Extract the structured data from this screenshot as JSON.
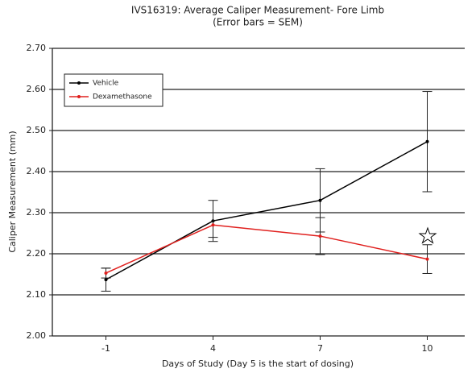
{
  "chart_data": {
    "type": "line",
    "title": "IVS16319: Average Caliper Measurement- Fore Limb",
    "subtitle": "(Error bars = SEM)",
    "x_label": "Days of Study (Day 5 is the start of dosing)",
    "y_label": "Caliper Measurement (mm)",
    "categories": [
      "-1",
      "4",
      "7",
      "10"
    ],
    "series": [
      {
        "name": "Vehicle",
        "color": "#000000",
        "values": [
          2.137,
          2.28,
          2.33,
          2.473
        ],
        "errors": [
          0.028,
          0.05,
          0.077,
          0.122
        ]
      },
      {
        "name": "Dexamethasone",
        "color": "#e0201e",
        "values": [
          2.153,
          2.27,
          2.243,
          2.187
        ],
        "errors": [
          0.012,
          0.03,
          0.045,
          0.035
        ]
      }
    ],
    "ylim": [
      2.0,
      2.7
    ],
    "yticks": [
      {
        "value": 2.0,
        "label": "2.00"
      },
      {
        "value": 2.1,
        "label": "2.10"
      },
      {
        "value": 2.2,
        "label": "2.20"
      },
      {
        "value": 2.3,
        "label": "2.30"
      },
      {
        "value": 2.4,
        "label": "2.40"
      },
      {
        "value": 2.5,
        "label": "2.50"
      },
      {
        "value": 2.6,
        "label": "2.60"
      },
      {
        "value": 2.7,
        "label": "2.70"
      }
    ],
    "grid": true,
    "legend": "upper left"
  }
}
